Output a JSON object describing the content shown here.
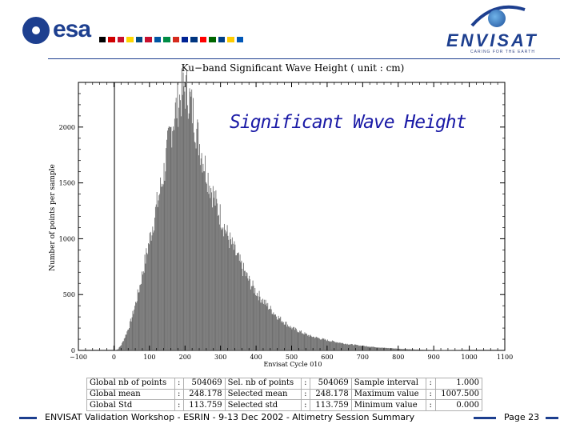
{
  "header": {
    "esa_logo_text": "esa",
    "envisat_logo_text": "ENVISAT",
    "envisat_tagline": "CARING FOR THE EARTH",
    "flag_colors": [
      "#000000",
      "#d00000",
      "#c8102e",
      "#ffd700",
      "#004b87",
      "#c8102e",
      "#0055a4",
      "#008c45",
      "#d52b1e",
      "#002395",
      "#003580",
      "#ff0000",
      "#006600",
      "#003f87",
      "#ffcc00",
      "#0057b8"
    ]
  },
  "chart_data": {
    "type": "bar",
    "title": "Ku−band Significant Wave Height ( unit : cm)",
    "overlay_title": "Significant Wave Height",
    "xlabel": "Envisat Cycle 010",
    "ylabel": "Number of points per sample",
    "xlim": [
      -100,
      1100
    ],
    "ylim": [
      0,
      2400
    ],
    "xticks": [
      -100,
      0,
      100,
      200,
      300,
      400,
      500,
      600,
      700,
      800,
      900,
      1000,
      1100
    ],
    "yticks": [
      0,
      500,
      1000,
      1500,
      2000
    ],
    "grid": false,
    "bin_width_cm": 1,
    "envelope": {
      "x": [
        0,
        10,
        20,
        30,
        40,
        50,
        60,
        70,
        80,
        90,
        100,
        110,
        120,
        130,
        140,
        150,
        160,
        170,
        180,
        190,
        200,
        210,
        220,
        230,
        240,
        250,
        260,
        270,
        280,
        290,
        300,
        320,
        340,
        360,
        380,
        400,
        420,
        440,
        460,
        480,
        500,
        550,
        600,
        650,
        700,
        750,
        800,
        850,
        900,
        950,
        1000
      ],
      "y": [
        0,
        10,
        50,
        120,
        200,
        300,
        420,
        550,
        700,
        850,
        1000,
        1150,
        1300,
        1450,
        1600,
        1800,
        1980,
        2120,
        2220,
        2300,
        2340,
        2280,
        2150,
        2000,
        1850,
        1720,
        1600,
        1480,
        1380,
        1280,
        1200,
        1020,
        880,
        740,
        620,
        520,
        440,
        370,
        300,
        250,
        200,
        130,
        90,
        60,
        40,
        25,
        15,
        8,
        4,
        2,
        0
      ]
    }
  },
  "stats": {
    "rows": [
      [
        "Global nb of points",
        ":",
        "504069",
        "Sel. nb of points",
        ":",
        "504069",
        "Sample interval",
        ":",
        "1.000"
      ],
      [
        "Global mean",
        ":",
        "248.178",
        "Selected mean",
        ":",
        "248.178",
        "Maximum value",
        ":",
        "1007.500"
      ],
      [
        "Global Std",
        ":",
        "113.759",
        "Selected std",
        ":",
        "113.759",
        "Minimum value",
        ":",
        "0.000"
      ]
    ]
  },
  "footer": {
    "text": "ENVISAT Validation Workshop - ESRIN - 9-13 Dec 2002 - Altimetry Session Summary",
    "page": "Page 23"
  }
}
